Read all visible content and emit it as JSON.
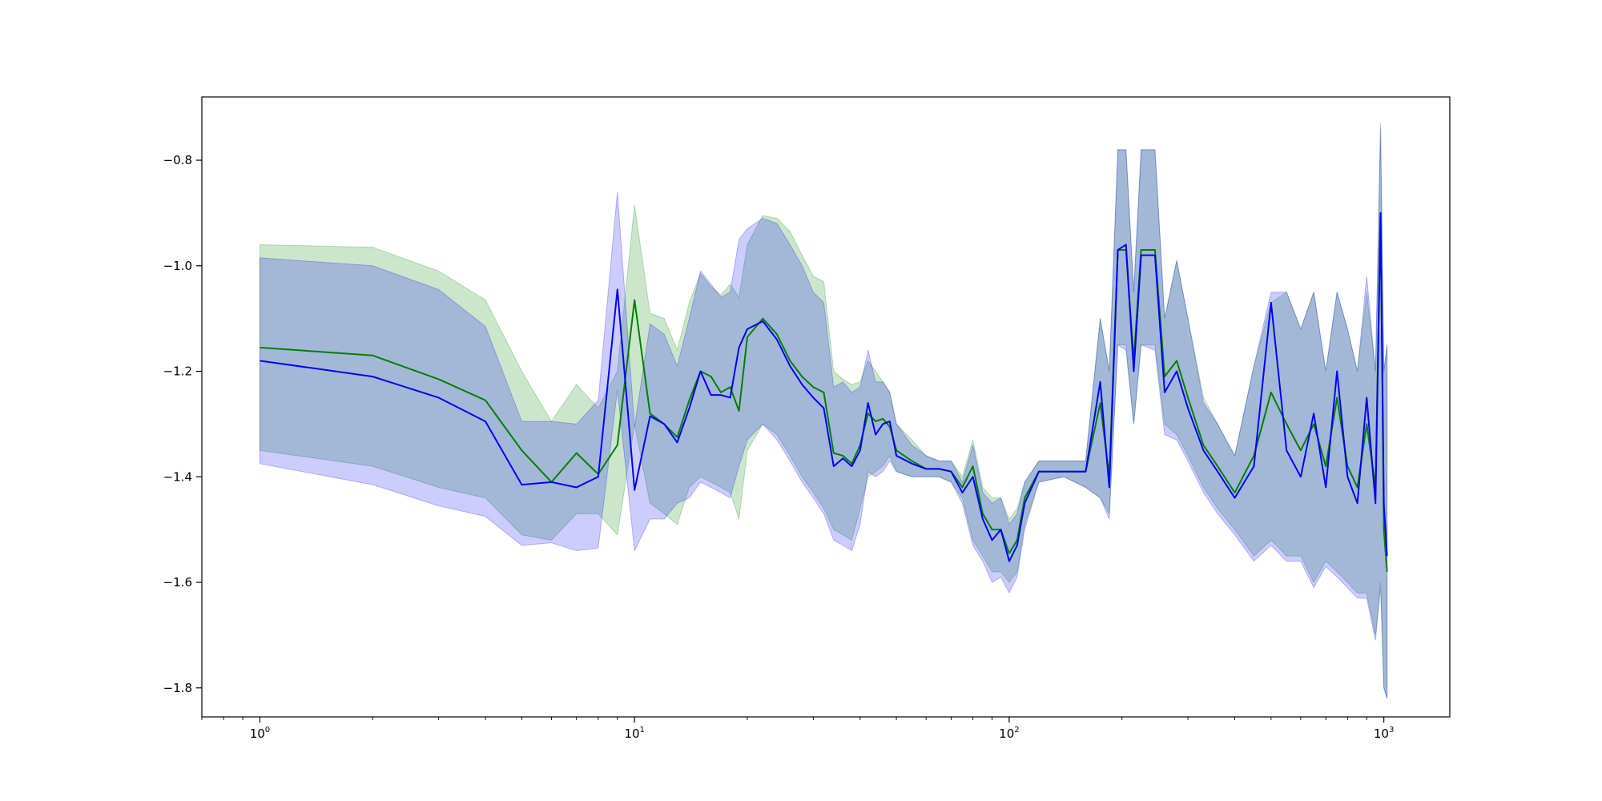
{
  "chart_data": {
    "type": "line",
    "title": "",
    "xlabel": "",
    "ylabel": "",
    "xscale": "log",
    "xlim": [
      0.7,
      1500
    ],
    "ylim": [
      -1.855,
      -0.68
    ],
    "grid": false,
    "legend": "none",
    "x_ticks": [
      {
        "base": "10",
        "exp": "0",
        "value": 1
      },
      {
        "base": "10",
        "exp": "1",
        "value": 10
      },
      {
        "base": "10",
        "exp": "2",
        "value": 100
      },
      {
        "base": "10",
        "exp": "3",
        "value": 1000
      }
    ],
    "y_ticks": [
      {
        "label": "−0.8",
        "value": -0.8
      },
      {
        "label": "−1.0",
        "value": -1.0
      },
      {
        "label": "−1.2",
        "value": -1.2
      },
      {
        "label": "−1.4",
        "value": -1.4
      },
      {
        "label": "−1.6",
        "value": -1.6
      },
      {
        "label": "−1.8",
        "value": -1.8
      }
    ],
    "series": [
      {
        "color": "#008000",
        "band_color": "#008000",
        "band_opacity": 0.2,
        "points": [
          [
            1,
            -1.155,
            -1.35,
            -0.96
          ],
          [
            2,
            -1.17,
            -1.38,
            -0.965
          ],
          [
            3,
            -1.215,
            -1.42,
            -1.01
          ],
          [
            4,
            -1.255,
            -1.44,
            -1.065
          ],
          [
            5,
            -1.35,
            -1.51,
            -1.2
          ],
          [
            6,
            -1.41,
            -1.52,
            -1.295
          ],
          [
            7,
            -1.355,
            -1.47,
            -1.225
          ],
          [
            8,
            -1.395,
            -1.47,
            -1.27
          ],
          [
            9,
            -1.34,
            -1.51,
            -1.2
          ],
          [
            10,
            -1.065,
            -1.3,
            -0.885
          ],
          [
            11,
            -1.28,
            -1.45,
            -1.09
          ],
          [
            12,
            -1.3,
            -1.47,
            -1.1
          ],
          [
            13,
            -1.325,
            -1.49,
            -1.16
          ],
          [
            14,
            -1.255,
            -1.42,
            -1.07
          ],
          [
            15,
            -1.2,
            -1.4,
            -1.015
          ],
          [
            16,
            -1.21,
            -1.41,
            -1.04
          ],
          [
            17,
            -1.24,
            -1.42,
            -1.055
          ],
          [
            18,
            -1.23,
            -1.43,
            -1.035
          ],
          [
            19,
            -1.275,
            -1.48,
            -1.06
          ],
          [
            20,
            -1.135,
            -1.35,
            -0.96
          ],
          [
            22,
            -1.1,
            -1.3,
            -0.905
          ],
          [
            24,
            -1.13,
            -1.32,
            -0.91
          ],
          [
            26,
            -1.18,
            -1.36,
            -0.935
          ],
          [
            28,
            -1.21,
            -1.4,
            -0.98
          ],
          [
            30,
            -1.23,
            -1.43,
            -1.02
          ],
          [
            32,
            -1.24,
            -1.46,
            -1.03
          ],
          [
            34,
            -1.355,
            -1.5,
            -1.2
          ],
          [
            36,
            -1.36,
            -1.51,
            -1.215
          ],
          [
            38,
            -1.375,
            -1.52,
            -1.225
          ],
          [
            40,
            -1.34,
            -1.46,
            -1.22
          ],
          [
            42,
            -1.28,
            -1.4,
            -1.18
          ],
          [
            44,
            -1.295,
            -1.39,
            -1.2
          ],
          [
            46,
            -1.29,
            -1.38,
            -1.22
          ],
          [
            48,
            -1.305,
            -1.36,
            -1.24
          ],
          [
            50,
            -1.35,
            -1.39,
            -1.3
          ],
          [
            55,
            -1.37,
            -1.4,
            -1.33
          ],
          [
            60,
            -1.385,
            -1.4,
            -1.36
          ],
          [
            65,
            -1.385,
            -1.4,
            -1.37
          ],
          [
            70,
            -1.39,
            -1.41,
            -1.37
          ],
          [
            75,
            -1.42,
            -1.44,
            -1.4
          ],
          [
            80,
            -1.38,
            -1.52,
            -1.33
          ],
          [
            85,
            -1.47,
            -1.55,
            -1.42
          ],
          [
            90,
            -1.5,
            -1.58,
            -1.44
          ],
          [
            95,
            -1.5,
            -1.58,
            -1.44
          ],
          [
            100,
            -1.545,
            -1.6,
            -1.48
          ],
          [
            105,
            -1.52,
            -1.58,
            -1.46
          ],
          [
            110,
            -1.44,
            -1.49,
            -1.41
          ],
          [
            120,
            -1.39,
            -1.41,
            -1.37
          ],
          [
            140,
            -1.39,
            -1.4,
            -1.37
          ],
          [
            160,
            -1.39,
            -1.42,
            -1.37
          ],
          [
            175,
            -1.26,
            -1.44,
            -1.1
          ],
          [
            185,
            -1.4,
            -1.47,
            -1.2
          ],
          [
            195,
            -0.97,
            -1.15,
            -0.78
          ],
          [
            205,
            -0.97,
            -1.15,
            -0.78
          ],
          [
            215,
            -1.18,
            -1.3,
            -1.05
          ],
          [
            225,
            -0.97,
            -1.15,
            -0.78
          ],
          [
            245,
            -0.97,
            -1.15,
            -0.78
          ],
          [
            260,
            -1.21,
            -1.3,
            -1.1
          ],
          [
            280,
            -1.18,
            -1.32,
            -0.99
          ],
          [
            300,
            -1.25,
            -1.36,
            -1.1
          ],
          [
            330,
            -1.34,
            -1.42,
            -1.25
          ],
          [
            360,
            -1.38,
            -1.46,
            -1.3
          ],
          [
            400,
            -1.43,
            -1.5,
            -1.36
          ],
          [
            450,
            -1.36,
            -1.55,
            -1.19
          ],
          [
            500,
            -1.24,
            -1.52,
            -1.07
          ],
          [
            550,
            -1.3,
            -1.55,
            -1.05
          ],
          [
            600,
            -1.35,
            -1.55,
            -1.12
          ],
          [
            650,
            -1.3,
            -1.6,
            -1.05
          ],
          [
            700,
            -1.38,
            -1.56,
            -1.2
          ],
          [
            750,
            -1.25,
            -1.58,
            -1.05
          ],
          [
            800,
            -1.38,
            -1.6,
            -1.12
          ],
          [
            850,
            -1.42,
            -1.62,
            -1.2
          ],
          [
            900,
            -1.3,
            -1.62,
            -1.05
          ],
          [
            950,
            -1.42,
            -1.7,
            -1.2
          ],
          [
            980,
            -0.9,
            -1.6,
            -0.74
          ],
          [
            1000,
            -1.5,
            -1.8,
            -1.2
          ],
          [
            1020,
            -1.58,
            -1.82,
            -1.15
          ]
        ]
      },
      {
        "color": "#0000ff",
        "band_color": "#0000ff",
        "band_opacity": 0.2,
        "points": [
          [
            1,
            -1.18,
            -1.375,
            -0.985
          ],
          [
            2,
            -1.21,
            -1.415,
            -1.0
          ],
          [
            3,
            -1.25,
            -1.455,
            -1.045
          ],
          [
            4,
            -1.295,
            -1.475,
            -1.115
          ],
          [
            5,
            -1.415,
            -1.53,
            -1.295
          ],
          [
            6,
            -1.41,
            -1.525,
            -1.295
          ],
          [
            7,
            -1.42,
            -1.54,
            -1.3
          ],
          [
            8,
            -1.4,
            -1.535,
            -1.255
          ],
          [
            9,
            -1.045,
            -1.235,
            -0.86
          ],
          [
            10,
            -1.425,
            -1.54,
            -1.305
          ],
          [
            11,
            -1.285,
            -1.48,
            -1.11
          ],
          [
            12,
            -1.3,
            -1.48,
            -1.13
          ],
          [
            13,
            -1.335,
            -1.45,
            -1.19
          ],
          [
            14,
            -1.27,
            -1.44,
            -1.1
          ],
          [
            15,
            -1.2,
            -1.41,
            -1.01
          ],
          [
            16,
            -1.245,
            -1.42,
            -1.035
          ],
          [
            17,
            -1.245,
            -1.43,
            -1.06
          ],
          [
            18,
            -1.25,
            -1.44,
            -1.05
          ],
          [
            19,
            -1.155,
            -1.38,
            -0.95
          ],
          [
            20,
            -1.12,
            -1.33,
            -0.93
          ],
          [
            22,
            -1.105,
            -1.3,
            -0.91
          ],
          [
            24,
            -1.14,
            -1.33,
            -0.92
          ],
          [
            26,
            -1.19,
            -1.37,
            -0.96
          ],
          [
            28,
            -1.225,
            -1.41,
            -1.0
          ],
          [
            30,
            -1.25,
            -1.44,
            -1.05
          ],
          [
            32,
            -1.27,
            -1.47,
            -1.07
          ],
          [
            34,
            -1.38,
            -1.52,
            -1.23
          ],
          [
            36,
            -1.365,
            -1.53,
            -1.22
          ],
          [
            38,
            -1.38,
            -1.54,
            -1.24
          ],
          [
            40,
            -1.35,
            -1.49,
            -1.23
          ],
          [
            42,
            -1.26,
            -1.39,
            -1.16
          ],
          [
            44,
            -1.32,
            -1.4,
            -1.22
          ],
          [
            46,
            -1.3,
            -1.39,
            -1.22
          ],
          [
            48,
            -1.295,
            -1.37,
            -1.24
          ],
          [
            50,
            -1.36,
            -1.39,
            -1.3
          ],
          [
            55,
            -1.375,
            -1.4,
            -1.34
          ],
          [
            60,
            -1.385,
            -1.4,
            -1.36
          ],
          [
            65,
            -1.385,
            -1.4,
            -1.37
          ],
          [
            70,
            -1.39,
            -1.41,
            -1.37
          ],
          [
            75,
            -1.43,
            -1.45,
            -1.41
          ],
          [
            80,
            -1.4,
            -1.53,
            -1.34
          ],
          [
            85,
            -1.48,
            -1.56,
            -1.43
          ],
          [
            90,
            -1.52,
            -1.6,
            -1.45
          ],
          [
            95,
            -1.5,
            -1.59,
            -1.44
          ],
          [
            100,
            -1.56,
            -1.62,
            -1.49
          ],
          [
            105,
            -1.53,
            -1.59,
            -1.47
          ],
          [
            110,
            -1.45,
            -1.5,
            -1.41
          ],
          [
            120,
            -1.39,
            -1.41,
            -1.37
          ],
          [
            140,
            -1.39,
            -1.4,
            -1.37
          ],
          [
            160,
            -1.39,
            -1.42,
            -1.37
          ],
          [
            175,
            -1.22,
            -1.44,
            -1.1
          ],
          [
            185,
            -1.42,
            -1.48,
            -1.2
          ],
          [
            195,
            -0.97,
            -1.15,
            -0.78
          ],
          [
            205,
            -0.96,
            -1.16,
            -0.78
          ],
          [
            215,
            -1.2,
            -1.3,
            -1.05
          ],
          [
            225,
            -0.98,
            -1.15,
            -0.78
          ],
          [
            245,
            -0.98,
            -1.16,
            -0.78
          ],
          [
            260,
            -1.24,
            -1.32,
            -1.1
          ],
          [
            280,
            -1.2,
            -1.33,
            -0.99
          ],
          [
            300,
            -1.27,
            -1.37,
            -1.1
          ],
          [
            330,
            -1.35,
            -1.43,
            -1.26
          ],
          [
            360,
            -1.39,
            -1.47,
            -1.3
          ],
          [
            400,
            -1.44,
            -1.51,
            -1.36
          ],
          [
            450,
            -1.38,
            -1.56,
            -1.19
          ],
          [
            500,
            -1.07,
            -1.53,
            -1.05
          ],
          [
            550,
            -1.35,
            -1.56,
            -1.05
          ],
          [
            600,
            -1.4,
            -1.56,
            -1.12
          ],
          [
            650,
            -1.28,
            -1.61,
            -1.05
          ],
          [
            700,
            -1.42,
            -1.57,
            -1.2
          ],
          [
            750,
            -1.2,
            -1.59,
            -1.05
          ],
          [
            800,
            -1.4,
            -1.61,
            -1.12
          ],
          [
            850,
            -1.45,
            -1.63,
            -1.2
          ],
          [
            900,
            -1.25,
            -1.63,
            -1.02
          ],
          [
            950,
            -1.45,
            -1.71,
            -1.2
          ],
          [
            980,
            -0.9,
            -1.61,
            -0.73
          ],
          [
            1000,
            -1.45,
            -1.8,
            -1.2
          ],
          [
            1020,
            -1.55,
            -1.82,
            -1.15
          ]
        ]
      }
    ]
  }
}
